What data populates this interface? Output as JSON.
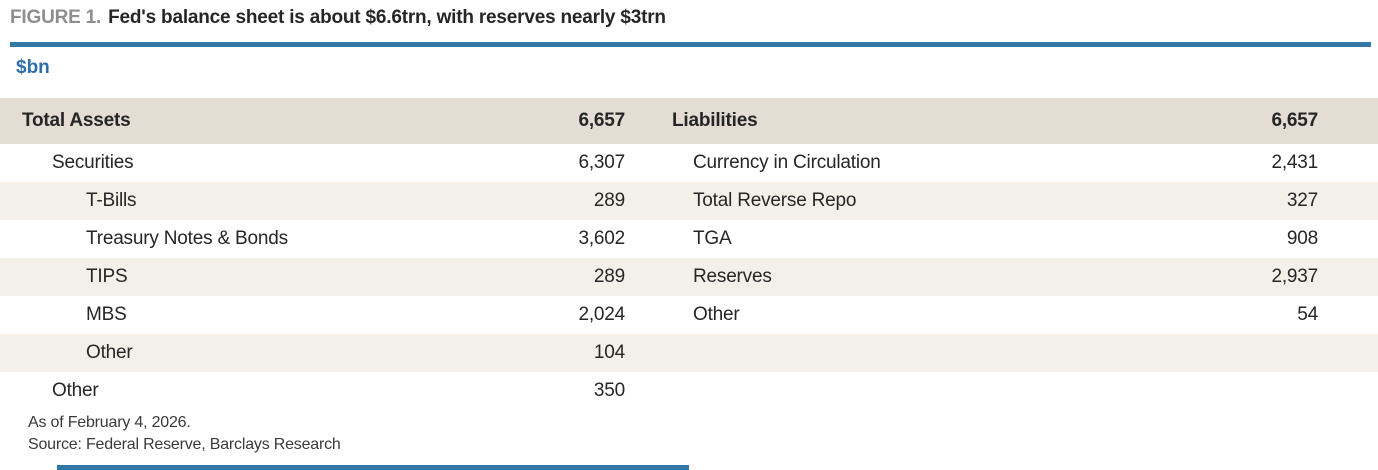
{
  "figure": {
    "label": "FIGURE 1.",
    "title": "Fed's balance sheet is about $6.6trn, with reserves nearly $3trn",
    "units": "$bn",
    "footnote": "As of February 4, 2026.",
    "source": "Source: Federal Reserve, Barclays Research"
  },
  "colors": {
    "accent_blue": "#3278a5",
    "units_blue": "#2d6fad",
    "header_bg": "#e3ddd3",
    "stripe_bg": "#f3f0ea",
    "figure_label_gray": "#8e8e8e",
    "text": "#262626",
    "footer_text": "#3a3a3a"
  },
  "table": {
    "header": {
      "left_label": "Total Assets",
      "left_value": "6,657",
      "right_label": "Liabilities",
      "right_value": "6,657"
    },
    "rows": [
      {
        "left_label": "Securities",
        "left_value": "6,307",
        "right_label": "Currency in Circulation",
        "right_value": "2,431"
      },
      {
        "left_label": "T-Bills",
        "left_value": "289",
        "right_label": "Total Reverse Repo",
        "right_value": "327"
      },
      {
        "left_label": "Treasury Notes & Bonds",
        "left_value": "3,602",
        "right_label": "TGA",
        "right_value": "908"
      },
      {
        "left_label": "TIPS",
        "left_value": "289",
        "right_label": "Reserves",
        "right_value": "2,937"
      },
      {
        "left_label": "MBS",
        "left_value": "2,024",
        "right_label": "Other",
        "right_value": "54"
      },
      {
        "left_label": "Other",
        "left_value": "104",
        "right_label": "",
        "right_value": ""
      },
      {
        "left_label": "Other",
        "left_value": "350",
        "right_label": "",
        "right_value": ""
      }
    ]
  },
  "chart_data": {
    "type": "table",
    "title": "Fed's balance sheet is about $6.6trn, with reserves nearly $3trn",
    "units": "$bn",
    "assets": {
      "label": "Total Assets",
      "total": 6657,
      "items": [
        {
          "label": "Securities",
          "value": 6307,
          "children": [
            {
              "label": "T-Bills",
              "value": 289
            },
            {
              "label": "Treasury Notes & Bonds",
              "value": 3602
            },
            {
              "label": "TIPS",
              "value": 289
            },
            {
              "label": "MBS",
              "value": 2024
            },
            {
              "label": "Other",
              "value": 104
            }
          ]
        },
        {
          "label": "Other",
          "value": 350
        }
      ]
    },
    "liabilities": {
      "label": "Liabilities",
      "total": 6657,
      "items": [
        {
          "label": "Currency in Circulation",
          "value": 2431
        },
        {
          "label": "Total Reverse Repo",
          "value": 327
        },
        {
          "label": "TGA",
          "value": 908
        },
        {
          "label": "Reserves",
          "value": 2937
        },
        {
          "label": "Other",
          "value": 54
        }
      ]
    }
  }
}
